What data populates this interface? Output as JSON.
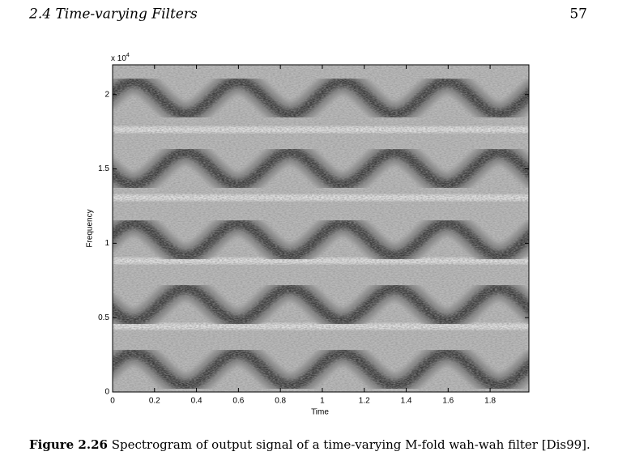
{
  "header": {
    "section": "2.4 Time-varying Filters",
    "page": "57"
  },
  "chart_data": {
    "type": "spectrogram",
    "xlabel": "Time",
    "ylabel": "Frequency",
    "multiplier": {
      "base": "x 10",
      "exponent": "4"
    },
    "xlim": [
      0,
      1.985
    ],
    "xticks": [
      0,
      0.2,
      0.4,
      0.6,
      0.8,
      1,
      1.2,
      1.4,
      1.6,
      1.8
    ],
    "ylim": [
      0,
      2.2
    ],
    "yticks": [
      0,
      0.5,
      1,
      1.5,
      2
    ]
  },
  "caption": {
    "label": "Figure 2.26",
    "text": "Spectrogram of output signal of a time-varying M-fold wah-wah filter [Dis99]."
  }
}
